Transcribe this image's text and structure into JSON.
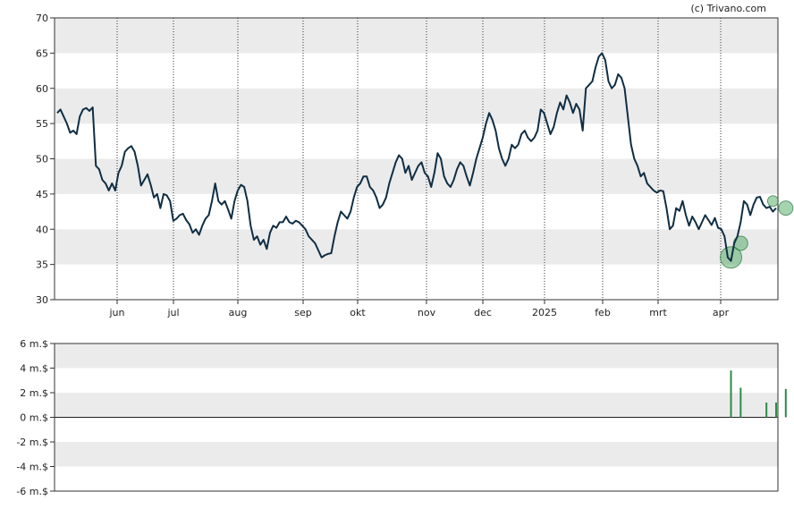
{
  "credit": "(c) Trivano.com",
  "chart_data": [
    {
      "type": "line",
      "ylim": [
        30,
        70
      ],
      "yticks": [
        30,
        35,
        40,
        45,
        50,
        55,
        60,
        65,
        70
      ],
      "month_labels": [
        "jun",
        "jul",
        "aug",
        "sep",
        "okt",
        "nov",
        "dec",
        "2025",
        "feb",
        "mrt",
        "apr"
      ],
      "grid": "alternating horizontal bands, dotted vertical month lines",
      "series": [
        {
          "color": "#0f2e44",
          "values": [
            56.5,
            57,
            56,
            55,
            53.7,
            54,
            53.5,
            56,
            57,
            57.2,
            56.8,
            57.3,
            49,
            48.5,
            47,
            46.5,
            45.5,
            46.5,
            45.5,
            48,
            49,
            51,
            51.5,
            51.8,
            51,
            49,
            46.2,
            47,
            47.8,
            46.3,
            44.5,
            45,
            43,
            45,
            44.8,
            44,
            41.2,
            41.5,
            42,
            42.2,
            41.3,
            40.7,
            39.5,
            40,
            39.2,
            40.5,
            41.5,
            42,
            44,
            46.5,
            44,
            43.5,
            44,
            42.8,
            41.5,
            44,
            45.5,
            46.3,
            46,
            44,
            40.5,
            38.5,
            39,
            37.8,
            38.5,
            37.2,
            39.5,
            40.5,
            40.2,
            41,
            41,
            41.8,
            41,
            40.8,
            41.2,
            41,
            40.5,
            40,
            39,
            38.5,
            38,
            37,
            36,
            36.3,
            36.5,
            36.6,
            39,
            41,
            42.5,
            42,
            41.5,
            42.5,
            44.5,
            46,
            46.5,
            47.5,
            47.5,
            46,
            45.5,
            44.5,
            43,
            43.5,
            44.5,
            46.5,
            48,
            49.5,
            50.5,
            50,
            48,
            49,
            47,
            48,
            49,
            49.5,
            48,
            47.5,
            46,
            48,
            50.8,
            50,
            47.5,
            46.5,
            46,
            47,
            48.5,
            49.5,
            49,
            47.5,
            46.2,
            48,
            50,
            51.5,
            53,
            55,
            56.5,
            55.5,
            54,
            51.5,
            50,
            49,
            50,
            52,
            51.5,
            52,
            53.5,
            54,
            53,
            52.5,
            53,
            54,
            57,
            56.5,
            55,
            53.5,
            54.5,
            56.5,
            58,
            57,
            59,
            58,
            56.5,
            57.8,
            57,
            54,
            60,
            60.5,
            61,
            63,
            64.5,
            65,
            64,
            61,
            60,
            60.5,
            62,
            61.5,
            60,
            56,
            52,
            50,
            49,
            47.5,
            48,
            46.5,
            46,
            45.5,
            45.2,
            45.5,
            45.4,
            43,
            40,
            40.5,
            43,
            42.6,
            44,
            42,
            40.5,
            41.8,
            41,
            40,
            41,
            42,
            41.3,
            40.6,
            41.6,
            40.2,
            40,
            39,
            36,
            35.5,
            38,
            39,
            41,
            44,
            43.5,
            42,
            43.5,
            44.5,
            44.6,
            43.5,
            43,
            43.2,
            42.5,
            43
          ]
        }
      ],
      "markers": [
        {
          "x_index": 209,
          "value": 36,
          "size": "large"
        },
        {
          "x_index": 212,
          "value": 38,
          "size": "medium"
        },
        {
          "x_index": 222,
          "value": 44,
          "size": "small"
        },
        {
          "x_index": 226,
          "value": 43,
          "size": "medium"
        }
      ]
    },
    {
      "type": "bar",
      "ylim": [
        -6,
        6
      ],
      "ytick_labels": [
        "6 m.$",
        "4 m.$",
        "2 m.$",
        "0 m.$",
        "-2 m.$",
        "-4 m.$",
        "-6 m.$"
      ],
      "yticks": [
        6,
        4,
        2,
        0,
        -2,
        -4,
        -6
      ],
      "color": "#2e8b47",
      "bars": [
        {
          "x_index": 209,
          "value": 3.8
        },
        {
          "x_index": 212,
          "value": 2.4
        },
        {
          "x_index": 220,
          "value": 1.2
        },
        {
          "x_index": 223,
          "value": 1.2
        },
        {
          "x_index": 226,
          "value": 2.3
        }
      ]
    }
  ]
}
